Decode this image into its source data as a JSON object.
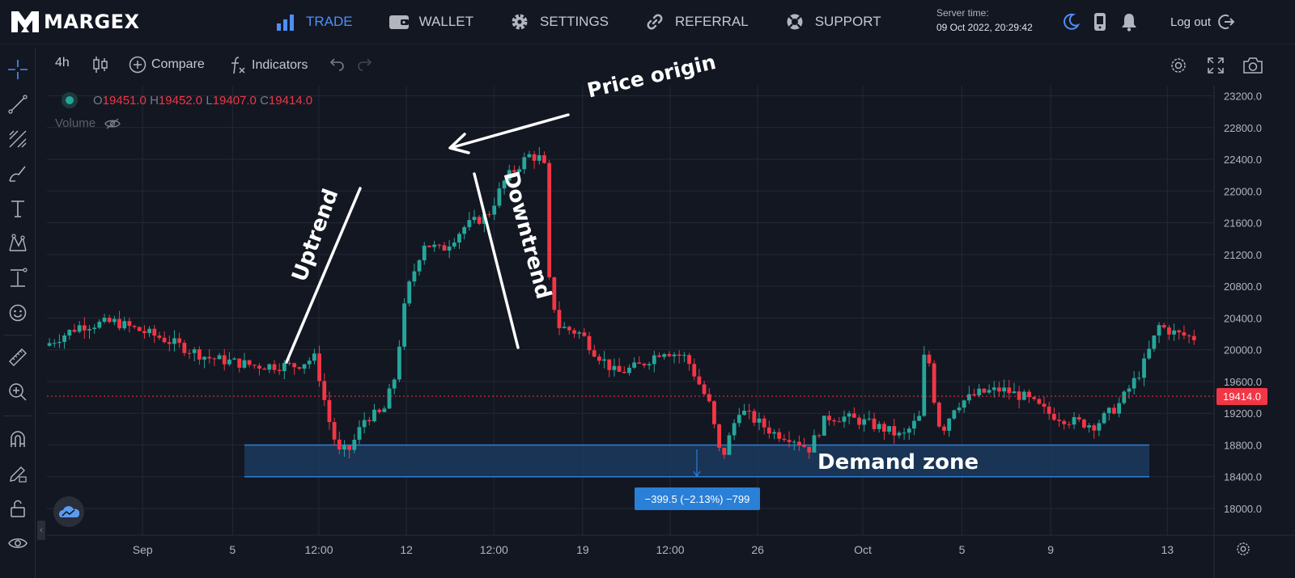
{
  "brand": {
    "name": "MARGEX"
  },
  "nav": {
    "items": [
      {
        "label": "TRADE",
        "icon": "bar-chart-icon",
        "active": true
      },
      {
        "label": "WALLET",
        "icon": "wallet-icon",
        "active": false
      },
      {
        "label": "SETTINGS",
        "icon": "gear-icon",
        "active": false
      },
      {
        "label": "REFERRAL",
        "icon": "link-icon",
        "active": false
      },
      {
        "label": "SUPPORT",
        "icon": "lifebuoy-icon",
        "active": false
      }
    ]
  },
  "server": {
    "label": "Server time:",
    "value": "09 Oct 2022, 20:29:42"
  },
  "header_icons": [
    "moon-icon",
    "phone-icon",
    "bell-icon"
  ],
  "logout_label": "Log out",
  "toolbar": {
    "interval": "4h",
    "compare_label": "Compare",
    "indicators_label": "Indicators"
  },
  "legend": {
    "o_label": "O",
    "o_value": "19451.0",
    "h_label": "H",
    "h_value": "19452.0",
    "l_label": "L",
    "l_value": "19407.0",
    "c_label": "C",
    "c_value": "19414.0",
    "volume_label": "Volume"
  },
  "measure_label": "−399.5 (−2.13%) −799",
  "annotations": {
    "uptrend": "Uptrend",
    "downtrend": "Downtrend",
    "price_origin": "Price origin",
    "demand_zone": "Demand zone"
  },
  "colors": {
    "up": "#26a69a",
    "down": "#f23645",
    "accent": "#4e8ff7",
    "zone_fill": "#1c3a5e",
    "zone_line": "#2f7fd4",
    "grid": "#242836",
    "background": "#131722"
  },
  "chart_data": {
    "type": "candlestick",
    "interval": "4h",
    "last_price": 19414.0,
    "ylim": [
      17800,
      23400
    ],
    "y_ticks": [
      23200,
      22800,
      22400,
      22000,
      21600,
      21200,
      20800,
      20400,
      20000,
      19600,
      19200,
      18800,
      18400,
      18000
    ],
    "y_tick_labels": [
      "23200.0",
      "22800.0",
      "22400.0",
      "22000.0",
      "21600.0",
      "21200.0",
      "20800.0",
      "20400.0",
      "20000.0",
      "19600.0",
      "19200.0",
      "18800.0",
      "18400.0",
      "18000.0"
    ],
    "x_ticks": [
      {
        "label": "Sep",
        "pos": 0.082
      },
      {
        "label": "5",
        "pos": 0.159
      },
      {
        "label": "12:00",
        "pos": 0.233
      },
      {
        "label": "12",
        "pos": 0.308
      },
      {
        "label": "12:00",
        "pos": 0.383
      },
      {
        "label": "19",
        "pos": 0.459
      },
      {
        "label": "12:00",
        "pos": 0.534
      },
      {
        "label": "26",
        "pos": 0.609
      },
      {
        "label": "Oct",
        "pos": 0.699
      },
      {
        "label": "5",
        "pos": 0.784
      },
      {
        "label": "9",
        "pos": 0.86
      },
      {
        "label": "13",
        "pos": 0.96
      }
    ],
    "demand_zone": {
      "low": 18400,
      "high": 18800
    },
    "guide": [
      [
        0,
        20050
      ],
      [
        0.03,
        20300
      ],
      [
        0.06,
        20350
      ],
      [
        0.1,
        20150
      ],
      [
        0.14,
        19900
      ],
      [
        0.18,
        19800
      ],
      [
        0.215,
        19800
      ],
      [
        0.232,
        19900
      ],
      [
        0.243,
        19150
      ],
      [
        0.252,
        18700
      ],
      [
        0.262,
        18750
      ],
      [
        0.275,
        19150
      ],
      [
        0.29,
        19200
      ],
      [
        0.3,
        19650
      ],
      [
        0.31,
        20700
      ],
      [
        0.325,
        21350
      ],
      [
        0.34,
        21250
      ],
      [
        0.36,
        21550
      ],
      [
        0.38,
        21700
      ],
      [
        0.395,
        22150
      ],
      [
        0.415,
        22450
      ],
      [
        0.428,
        22400
      ],
      [
        0.432,
        20900
      ],
      [
        0.44,
        20300
      ],
      [
        0.46,
        20200
      ],
      [
        0.47,
        20000
      ],
      [
        0.49,
        19700
      ],
      [
        0.51,
        19800
      ],
      [
        0.53,
        20000
      ],
      [
        0.55,
        19900
      ],
      [
        0.57,
        19300
      ],
      [
        0.58,
        18600
      ],
      [
        0.595,
        19250
      ],
      [
        0.61,
        19100
      ],
      [
        0.625,
        18950
      ],
      [
        0.64,
        18900
      ],
      [
        0.655,
        18750
      ],
      [
        0.67,
        19150
      ],
      [
        0.685,
        19150
      ],
      [
        0.7,
        19100
      ],
      [
        0.72,
        19000
      ],
      [
        0.735,
        18900
      ],
      [
        0.75,
        19150
      ],
      [
        0.755,
        20150
      ],
      [
        0.765,
        19100
      ],
      [
        0.77,
        19000
      ],
      [
        0.78,
        19300
      ],
      [
        0.8,
        19450
      ],
      [
        0.82,
        19500
      ],
      [
        0.84,
        19400
      ],
      [
        0.86,
        19200
      ],
      [
        0.88,
        19100
      ],
      [
        0.9,
        19050
      ],
      [
        0.92,
        19300
      ],
      [
        0.94,
        19750
      ],
      [
        0.955,
        20300
      ],
      [
        0.97,
        20200
      ],
      [
        0.985,
        20150
      ],
      [
        1.0,
        19950
      ],
      [
        1.015,
        19600
      ],
      [
        1.03,
        19450
      ],
      [
        1.05,
        19350
      ],
      [
        1.07,
        19420
      ]
    ],
    "x_range_candles": [
      0,
      0.985
    ]
  }
}
